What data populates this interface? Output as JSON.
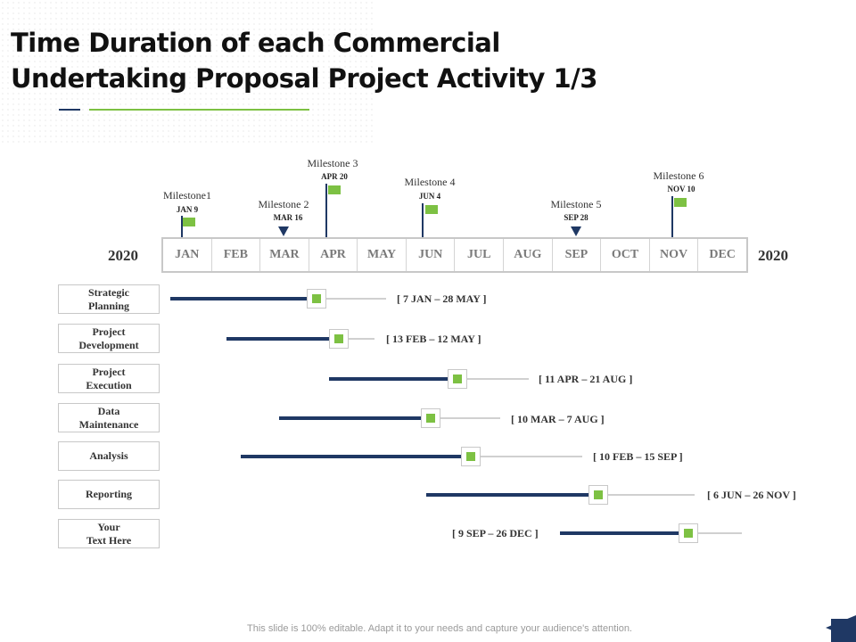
{
  "title": {
    "line1": "Time Duration of each Commercial",
    "line2": "Undertaking Proposal Project Activity 1/3"
  },
  "timeline": {
    "year_left": "2020",
    "year_right": "2020",
    "months": [
      "JAN",
      "FEB",
      "MAR",
      "APR",
      "MAY",
      "JUN",
      "JUL",
      "AUG",
      "SEP",
      "OCT",
      "NOV",
      "DEC"
    ]
  },
  "milestones": [
    {
      "title": "Milestone1",
      "date": "JAN 9",
      "style": "flag"
    },
    {
      "title": "Milestone 2",
      "date": "MAR 16",
      "style": "triangle"
    },
    {
      "title": "Milestone 3",
      "date": "APR 20",
      "style": "flag"
    },
    {
      "title": "Milestone 4",
      "date": "JUN 4",
      "style": "flag"
    },
    {
      "title": "Milestone 5",
      "date": "SEP 28",
      "style": "triangle"
    },
    {
      "title": "Milestone 6",
      "date": "NOV 10",
      "style": "flag"
    }
  ],
  "activities": [
    {
      "line1": "Strategic",
      "line2": "Planning",
      "range": "[ 7 JAN – 28 MAY ]"
    },
    {
      "line1": "Project",
      "line2": "Development",
      "range": "[ 13 FEB – 12 MAY ]"
    },
    {
      "line1": "Project",
      "line2": "Execution",
      "range": "[ 11 APR – 21 AUG ]"
    },
    {
      "line1": "Data",
      "line2": "Maintenance",
      "range": "[ 10 MAR – 7 AUG ]"
    },
    {
      "line1": "Analysis",
      "line2": "",
      "range": "[ 10 FEB – 15 SEP ]"
    },
    {
      "line1": "Reporting",
      "line2": "",
      "range": "[ 6 JUN – 26 NOV ]"
    },
    {
      "line1": "Your",
      "line2": "Text Here",
      "range": "[ 9 SEP – 26 DEC ]"
    }
  ],
  "footer": "This slide is 100% editable. Adapt it to your needs and capture your audience's attention.",
  "colors": {
    "navy": "#1f3864",
    "green": "#7dc143",
    "gray": "#c8c8c8"
  }
}
